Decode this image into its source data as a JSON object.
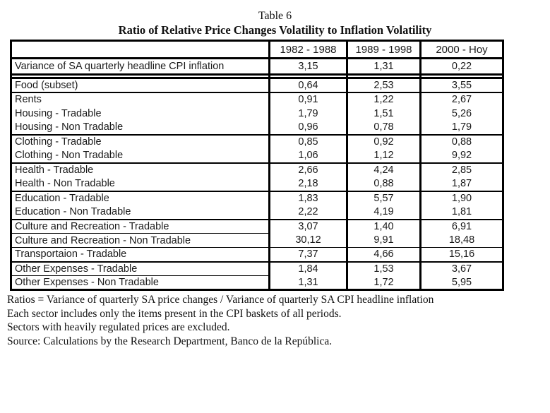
{
  "page": {
    "title": "Table 6",
    "subtitle": "Ratio of Relative Price Changes Volatility to Inflation Volatility"
  },
  "chart_data": {
    "type": "table",
    "columns": [
      "",
      "1982 - 1988",
      "1989 - 1998",
      "2000 - Hoy"
    ],
    "decimal_separator": ",",
    "rows": [
      {
        "label": "Variance of SA quarterly headline CPI inflation",
        "v1": "3,15",
        "v2": "1,31",
        "v3": "0,22"
      },
      {
        "label": "Food (subset)",
        "v1": "0,64",
        "v2": "2,53",
        "v3": "3,55"
      },
      {
        "label": "Rents",
        "v1": "0,91",
        "v2": "1,22",
        "v3": "2,67"
      },
      {
        "label": "Housing - Tradable",
        "v1": "1,79",
        "v2": "1,51",
        "v3": "5,26"
      },
      {
        "label": "Housing - Non Tradable",
        "v1": "0,96",
        "v2": "0,78",
        "v3": "1,79"
      },
      {
        "label": "Clothing - Tradable",
        "v1": "0,85",
        "v2": "0,92",
        "v3": "0,88"
      },
      {
        "label": "Clothing - Non Tradable",
        "v1": "1,06",
        "v2": "1,12",
        "v3": "9,92"
      },
      {
        "label": "Health - Tradable",
        "v1": "2,66",
        "v2": "4,24",
        "v3": "2,85"
      },
      {
        "label": "Health - Non Tradable",
        "v1": "2,18",
        "v2": "0,88",
        "v3": "1,87"
      },
      {
        "label": "Education - Tradable",
        "v1": "1,83",
        "v2": "5,57",
        "v3": "1,90"
      },
      {
        "label": "Education - Non Tradable",
        "v1": "2,22",
        "v2": "4,19",
        "v3": "1,81"
      },
      {
        "label": "Culture and Recreation - Tradable",
        "v1": "3,07",
        "v2": "1,40",
        "v3": "6,91"
      },
      {
        "label": "Culture and Recreation - Non Tradable",
        "v1": "30,12",
        "v2": "9,91",
        "v3": "18,48"
      },
      {
        "label": "Transportaion - Tradable",
        "v1": "7,37",
        "v2": "4,66",
        "v3": "15,16"
      },
      {
        "label": "Other Expenses - Tradable",
        "v1": "1,84",
        "v2": "1,53",
        "v3": "3,67"
      },
      {
        "label": "Other Expenses - Non Tradable",
        "v1": "1,31",
        "v2": "1,72",
        "v3": "5,95"
      }
    ]
  },
  "notes": [
    "Ratios = Variance of quarterly SA price changes / Variance of quarterly SA CPI headline inflation",
    "Each sector includes only the items present in the CPI baskets of all periods.",
    "Sectors with heavily regulated prices are excluded.",
    "Source: Calculations by the Research Department, Banco de la República."
  ]
}
